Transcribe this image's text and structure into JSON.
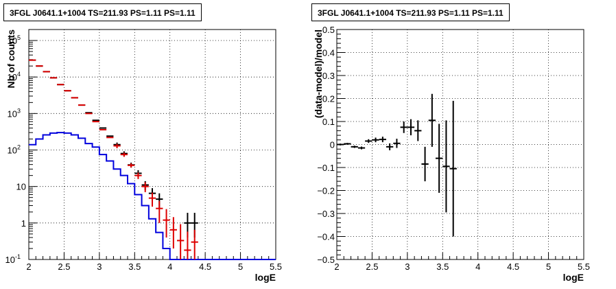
{
  "chart_data": [
    {
      "type": "histogram",
      "title": "3FGL J0641.1+1004 TS=211.93 PS=1.11 PS=1.11",
      "xlabel": "logE",
      "ylabel": "Nb of counts",
      "xlim": [
        2,
        5.5
      ],
      "ylim": [
        0.1,
        200000
      ],
      "yscale": "log",
      "grid": true,
      "x_ticks": [
        "2",
        "2.5",
        "3",
        "3.5",
        "4",
        "4.5",
        "5",
        "5.5"
      ],
      "y_ticks": [
        {
          "value": 0.1,
          "label": "10",
          "exp": "-1"
        },
        {
          "value": 1,
          "label": "1",
          "exp": ""
        },
        {
          "value": 10,
          "label": "10",
          "exp": ""
        },
        {
          "value": 100,
          "label": "10",
          "exp": "2"
        },
        {
          "value": 1000,
          "label": "10",
          "exp": "3"
        },
        {
          "value": 10000,
          "label": "10",
          "exp": "4"
        },
        {
          "value": 100000,
          "label": "10",
          "exp": "5"
        }
      ],
      "series": [
        {
          "kind": "step",
          "color": "#0000dd",
          "bin_edges": [
            2.0,
            2.1,
            2.2,
            2.3,
            2.4,
            2.5,
            2.6,
            2.7,
            2.8,
            2.9,
            3.0,
            3.1,
            3.2,
            3.3,
            3.4,
            3.5,
            3.6,
            3.7,
            3.8,
            3.9,
            4.0,
            5.5
          ],
          "values": [
            140,
            200,
            260,
            290,
            300,
            290,
            260,
            210,
            150,
            120,
            75,
            50,
            30,
            20,
            12,
            6,
            3,
            1.3,
            0.55,
            0.2,
            0.1
          ]
        },
        {
          "kind": "errorbar",
          "color": "#000000",
          "x": [
            2.05,
            2.15,
            2.25,
            2.35,
            2.45,
            2.55,
            2.65,
            2.75,
            2.85,
            2.95,
            3.05,
            3.15,
            3.25,
            3.35,
            3.45,
            3.55,
            3.65,
            3.75,
            3.85,
            4.25,
            4.35
          ],
          "y": [
            29000,
            20000,
            14000,
            9500,
            6200,
            4200,
            2700,
            1700,
            1050,
            650,
            400,
            240,
            140,
            80,
            39,
            23,
            11,
            6.5,
            4.5,
            1,
            1
          ],
          "err_low": [
            0,
            0,
            0,
            0,
            0,
            0,
            0,
            0,
            0,
            0,
            0,
            0,
            20,
            12,
            6,
            5,
            3,
            2.5,
            2,
            0.6,
            0.6
          ],
          "err_high": [
            0,
            0,
            0,
            0,
            0,
            0,
            0,
            0,
            0,
            0,
            0,
            0,
            20,
            12,
            6,
            5,
            3,
            2.5,
            2,
            0.9,
            0.9
          ]
        },
        {
          "kind": "errorbar",
          "color": "#dd0000",
          "x": [
            2.05,
            2.15,
            2.25,
            2.35,
            2.45,
            2.55,
            2.65,
            2.75,
            2.85,
            2.95,
            3.05,
            3.15,
            3.25,
            3.35,
            3.45,
            3.55,
            3.65,
            3.75,
            3.85,
            3.95,
            4.05,
            4.15,
            4.25,
            4.35
          ],
          "y": [
            29000,
            20000,
            14000,
            9500,
            6200,
            4200,
            2700,
            1700,
            1000,
            600,
            360,
            220,
            130,
            75,
            38,
            20,
            10,
            4.8,
            2.5,
            1.2,
            0.65,
            0.33,
            0.18,
            0.3
          ],
          "err_low": [
            0,
            0,
            0,
            0,
            0,
            0,
            0,
            0,
            0,
            0,
            0,
            0,
            18,
            10,
            5,
            4,
            3,
            2,
            1.5,
            0.8,
            0.45,
            0.23,
            0.13,
            0.22
          ],
          "err_high": [
            0,
            0,
            0,
            0,
            0,
            0,
            0,
            0,
            0,
            0,
            0,
            0,
            18,
            10,
            5,
            4,
            3,
            2,
            1.5,
            1.2,
            0.8,
            0.6,
            0.4,
            0.35
          ]
        }
      ]
    },
    {
      "type": "scatter",
      "title": "3FGL J0641.1+1004 TS=211.93 PS=1.11 PS=1.11",
      "xlabel": "logE",
      "ylabel": "(data-model)/model",
      "xlim": [
        2,
        5.5
      ],
      "ylim": [
        -0.5,
        0.5
      ],
      "grid": true,
      "x_ticks": [
        "2",
        "2.5",
        "3",
        "3.5",
        "4",
        "4.5",
        "5",
        "5.5"
      ],
      "y_ticks": [
        "−0.5",
        "−0.4",
        "−0.3",
        "−0.2",
        "−0.1",
        "0",
        "0.1",
        "0.2",
        "0.3",
        "0.4",
        "0.5"
      ],
      "series": [
        {
          "kind": "errorbar",
          "color": "#000000",
          "x": [
            2.05,
            2.15,
            2.25,
            2.35,
            2.45,
            2.55,
            2.65,
            2.75,
            2.85,
            2.95,
            3.05,
            3.15,
            3.25,
            3.35,
            3.45,
            3.55,
            3.65
          ],
          "y": [
            0.0,
            0.003,
            -0.01,
            -0.015,
            0.015,
            0.02,
            0.022,
            -0.01,
            0.005,
            0.075,
            0.075,
            0.06,
            -0.085,
            0.105,
            -0.06,
            -0.095,
            -0.105
          ],
          "err": [
            0.004,
            0.004,
            0.005,
            0.006,
            0.008,
            0.01,
            0.012,
            0.015,
            0.02,
            0.025,
            0.035,
            0.045,
            0.075,
            0.115,
            0.15,
            0.2,
            0.295
          ]
        }
      ]
    }
  ]
}
